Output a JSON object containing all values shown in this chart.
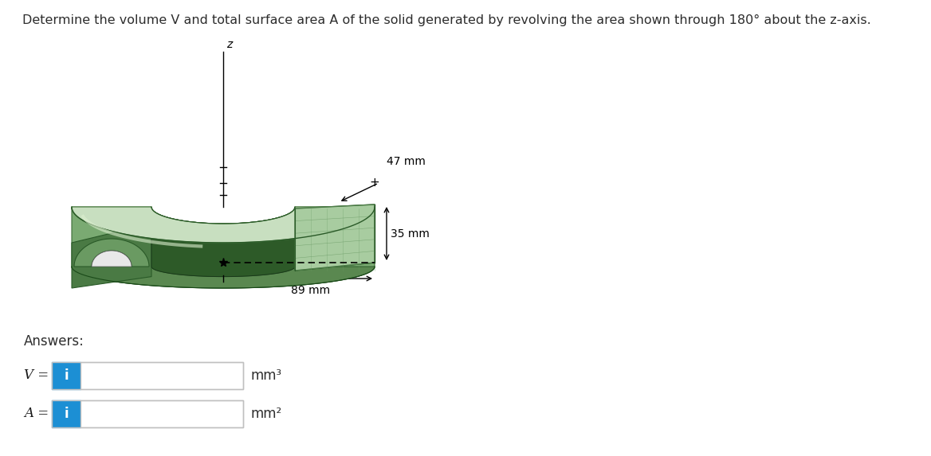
{
  "title": "Determine the volume V and total surface area A of the solid generated by revolving the area shown through 180° about the z-axis.",
  "title_fontsize": 11.5,
  "title_color": "#2d2d2d",
  "background_color": "#ffffff",
  "answers_label": "Answers:",
  "v_label": "V =",
  "a_label": "A =",
  "mm3_label": "mm³",
  "mm2_label": "mm²",
  "icon_bg_color": "#1c8fd4",
  "icon_text": "i",
  "icon_text_color": "#ffffff",
  "dim1_label": "47 mm",
  "dim2_label": "35 mm",
  "dim3_label": "89 mm",
  "z_label": "z",
  "col_outer_top": "#c8dfc0",
  "col_outer_wall": "#7aaa72",
  "col_inner_wall": "#2d5a28",
  "col_cut_face": "#a8cca0",
  "col_base": "#5a8850",
  "col_left_face": "#4a7a44",
  "col_arch_frame": "#6a9a62",
  "col_dark": "#1e4020",
  "col_tunnel": "#243824"
}
